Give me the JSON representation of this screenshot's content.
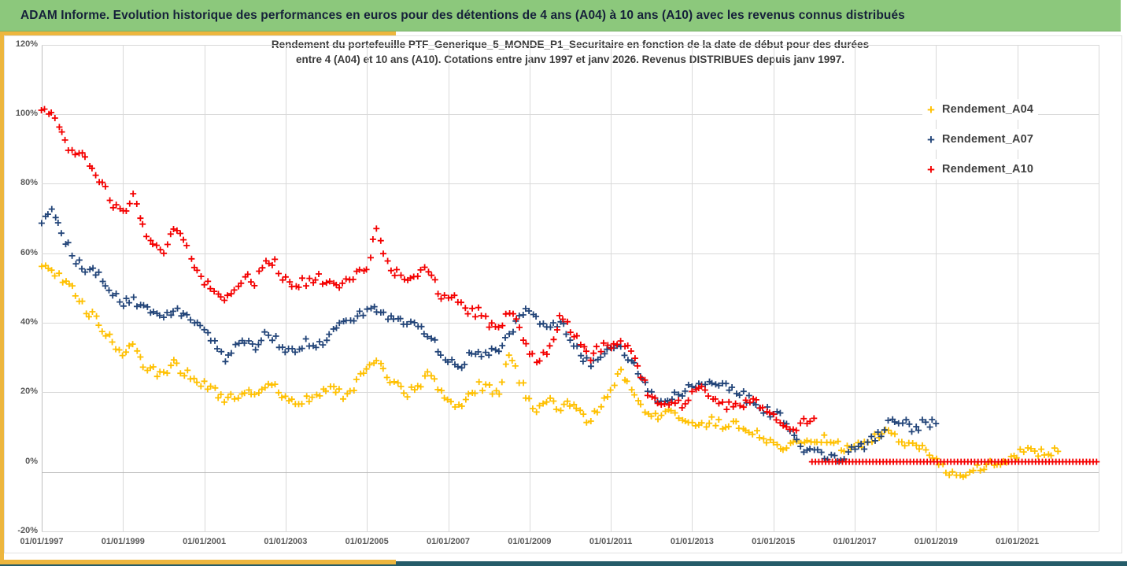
{
  "window": {
    "title": "ADAM Informe. Evolution historique des performances en euros pour des détentions de 4 ans (A04) à 10 ans (A10) avec les revenus connus distribués"
  },
  "style": {
    "header_green": "#8CC87C",
    "header_text": "#16213a",
    "accent_yellow": "#EDB63E",
    "footer_teal": "#255C69",
    "grid_gray": "#d9d9d9",
    "axis_gray": "#bfbfbf",
    "label_gray": "#595959",
    "title_gray": "#3b3b3b"
  },
  "chart": {
    "title_lines": {
      "0": "Rendement du portefeuille PTF_Generique_5_MONDE_P1_Securitaire  en fonction de la date de début pour des durées",
      "1": "entre 4 (A04) et 10 ans (A10). Cotations entre janv 1997 et janv 2026. Revenus DISTRIBUES depuis janv 1997."
    }
  },
  "chart_data": {
    "type": "scatter",
    "marker": "plus",
    "title": "Rendement du portefeuille PTF_Generique_5_MONDE_P1_Securitaire en fonction de la date de début pour des durées entre 4 (A04) et 10 ans (A10). Cotations entre janv 1997 et janv 2026. Revenus DISTRIBUES depuis janv 1997.",
    "x_range_years": [
      1997,
      2023
    ],
    "y_range_pct": [
      -20,
      120
    ],
    "grid": true,
    "legend_position": "right-top",
    "x_tick_labels": [
      "01/01/1997",
      "01/01/1999",
      "01/01/2001",
      "01/01/2003",
      "01/01/2005",
      "01/01/2007",
      "01/01/2009",
      "01/01/2011",
      "01/01/2013",
      "01/01/2015",
      "01/01/2017",
      "01/01/2019",
      "01/01/2021"
    ],
    "y_tick_labels": [
      "120%",
      "100%",
      "80%",
      "60%",
      "40%",
      "20%",
      "0%",
      "-20%"
    ],
    "sampling_note": "values are percent returns, quarterly estimates read from plot; x = start_year + index*step_years",
    "series": [
      {
        "name": "Rendement_A04",
        "color": "#FFC000",
        "start_year": 1997.0,
        "step_years": 0.25,
        "values": [
          57,
          55,
          53,
          50,
          45,
          42,
          38,
          34,
          30,
          33,
          28,
          26,
          25,
          28,
          26,
          24,
          22,
          20,
          17,
          19,
          21,
          19,
          22,
          21,
          18,
          17,
          18,
          19,
          21,
          20,
          19,
          23,
          26,
          28.5,
          24,
          22,
          20,
          21,
          25,
          22,
          18,
          16,
          19,
          22,
          21,
          19,
          31,
          24,
          17,
          15,
          19,
          15,
          17,
          14,
          12,
          16,
          20,
          26,
          20,
          16,
          14,
          13,
          14,
          13,
          12,
          11,
          11.5,
          10.5,
          11,
          10,
          9,
          7,
          5.5,
          4,
          7,
          6.5,
          6,
          6.5,
          5.5,
          4,
          4.5,
          6,
          7.5,
          8,
          7,
          5,
          4,
          3,
          0.5,
          -2,
          -4,
          -3,
          -2,
          -1,
          0,
          1,
          2.5,
          3.5,
          3,
          2.5,
          3
        ]
      },
      {
        "name": "Rendement_A07",
        "color": "#234579",
        "start_year": 1997.0,
        "step_years": 0.25,
        "values": [
          70,
          73,
          65,
          60,
          55,
          56,
          53,
          48,
          45,
          47,
          44,
          42,
          41,
          44,
          42,
          40,
          38,
          34,
          29,
          33,
          35,
          33,
          36,
          35,
          31,
          32,
          34,
          33,
          36,
          38,
          40,
          42,
          43,
          44,
          42,
          41,
          40,
          38,
          37,
          33,
          29,
          26,
          30,
          32,
          31,
          33,
          37,
          41,
          44,
          40,
          38,
          40,
          36,
          31,
          28,
          31,
          32,
          33,
          29,
          24,
          19,
          17,
          19,
          20,
          22,
          23,
          23,
          22,
          21,
          19,
          17,
          15,
          14,
          12,
          7,
          4,
          3,
          1.5,
          1,
          2,
          3.5,
          5,
          7,
          9.5,
          12.5,
          11,
          9.5,
          11.5,
          11
        ]
      },
      {
        "name": "Rendement_A10",
        "color": "#F40000",
        "start_year": 1997.0,
        "step_years": 0.25,
        "values": [
          102,
          100,
          95,
          89,
          88,
          85,
          80,
          74,
          71,
          76,
          67,
          62,
          59,
          67,
          64,
          57,
          52,
          49,
          46,
          50,
          54,
          52,
          59,
          57,
          52,
          51,
          52,
          53,
          52,
          50,
          52,
          54,
          56,
          66,
          57,
          54,
          53,
          53,
          56,
          49,
          46,
          47,
          43,
          43,
          40,
          38,
          44,
          38,
          31,
          29,
          33,
          41,
          38,
          34,
          30,
          33,
          34,
          35,
          31,
          25,
          18,
          16,
          17,
          16,
          20,
          22,
          18,
          16,
          17,
          16,
          17.5,
          16.5,
          14,
          11,
          9.5,
          12,
          12.5
        ],
        "zero_segment": {
          "start_year": 2015.95,
          "end_year": 2023.0,
          "value": 0
        }
      }
    ]
  }
}
